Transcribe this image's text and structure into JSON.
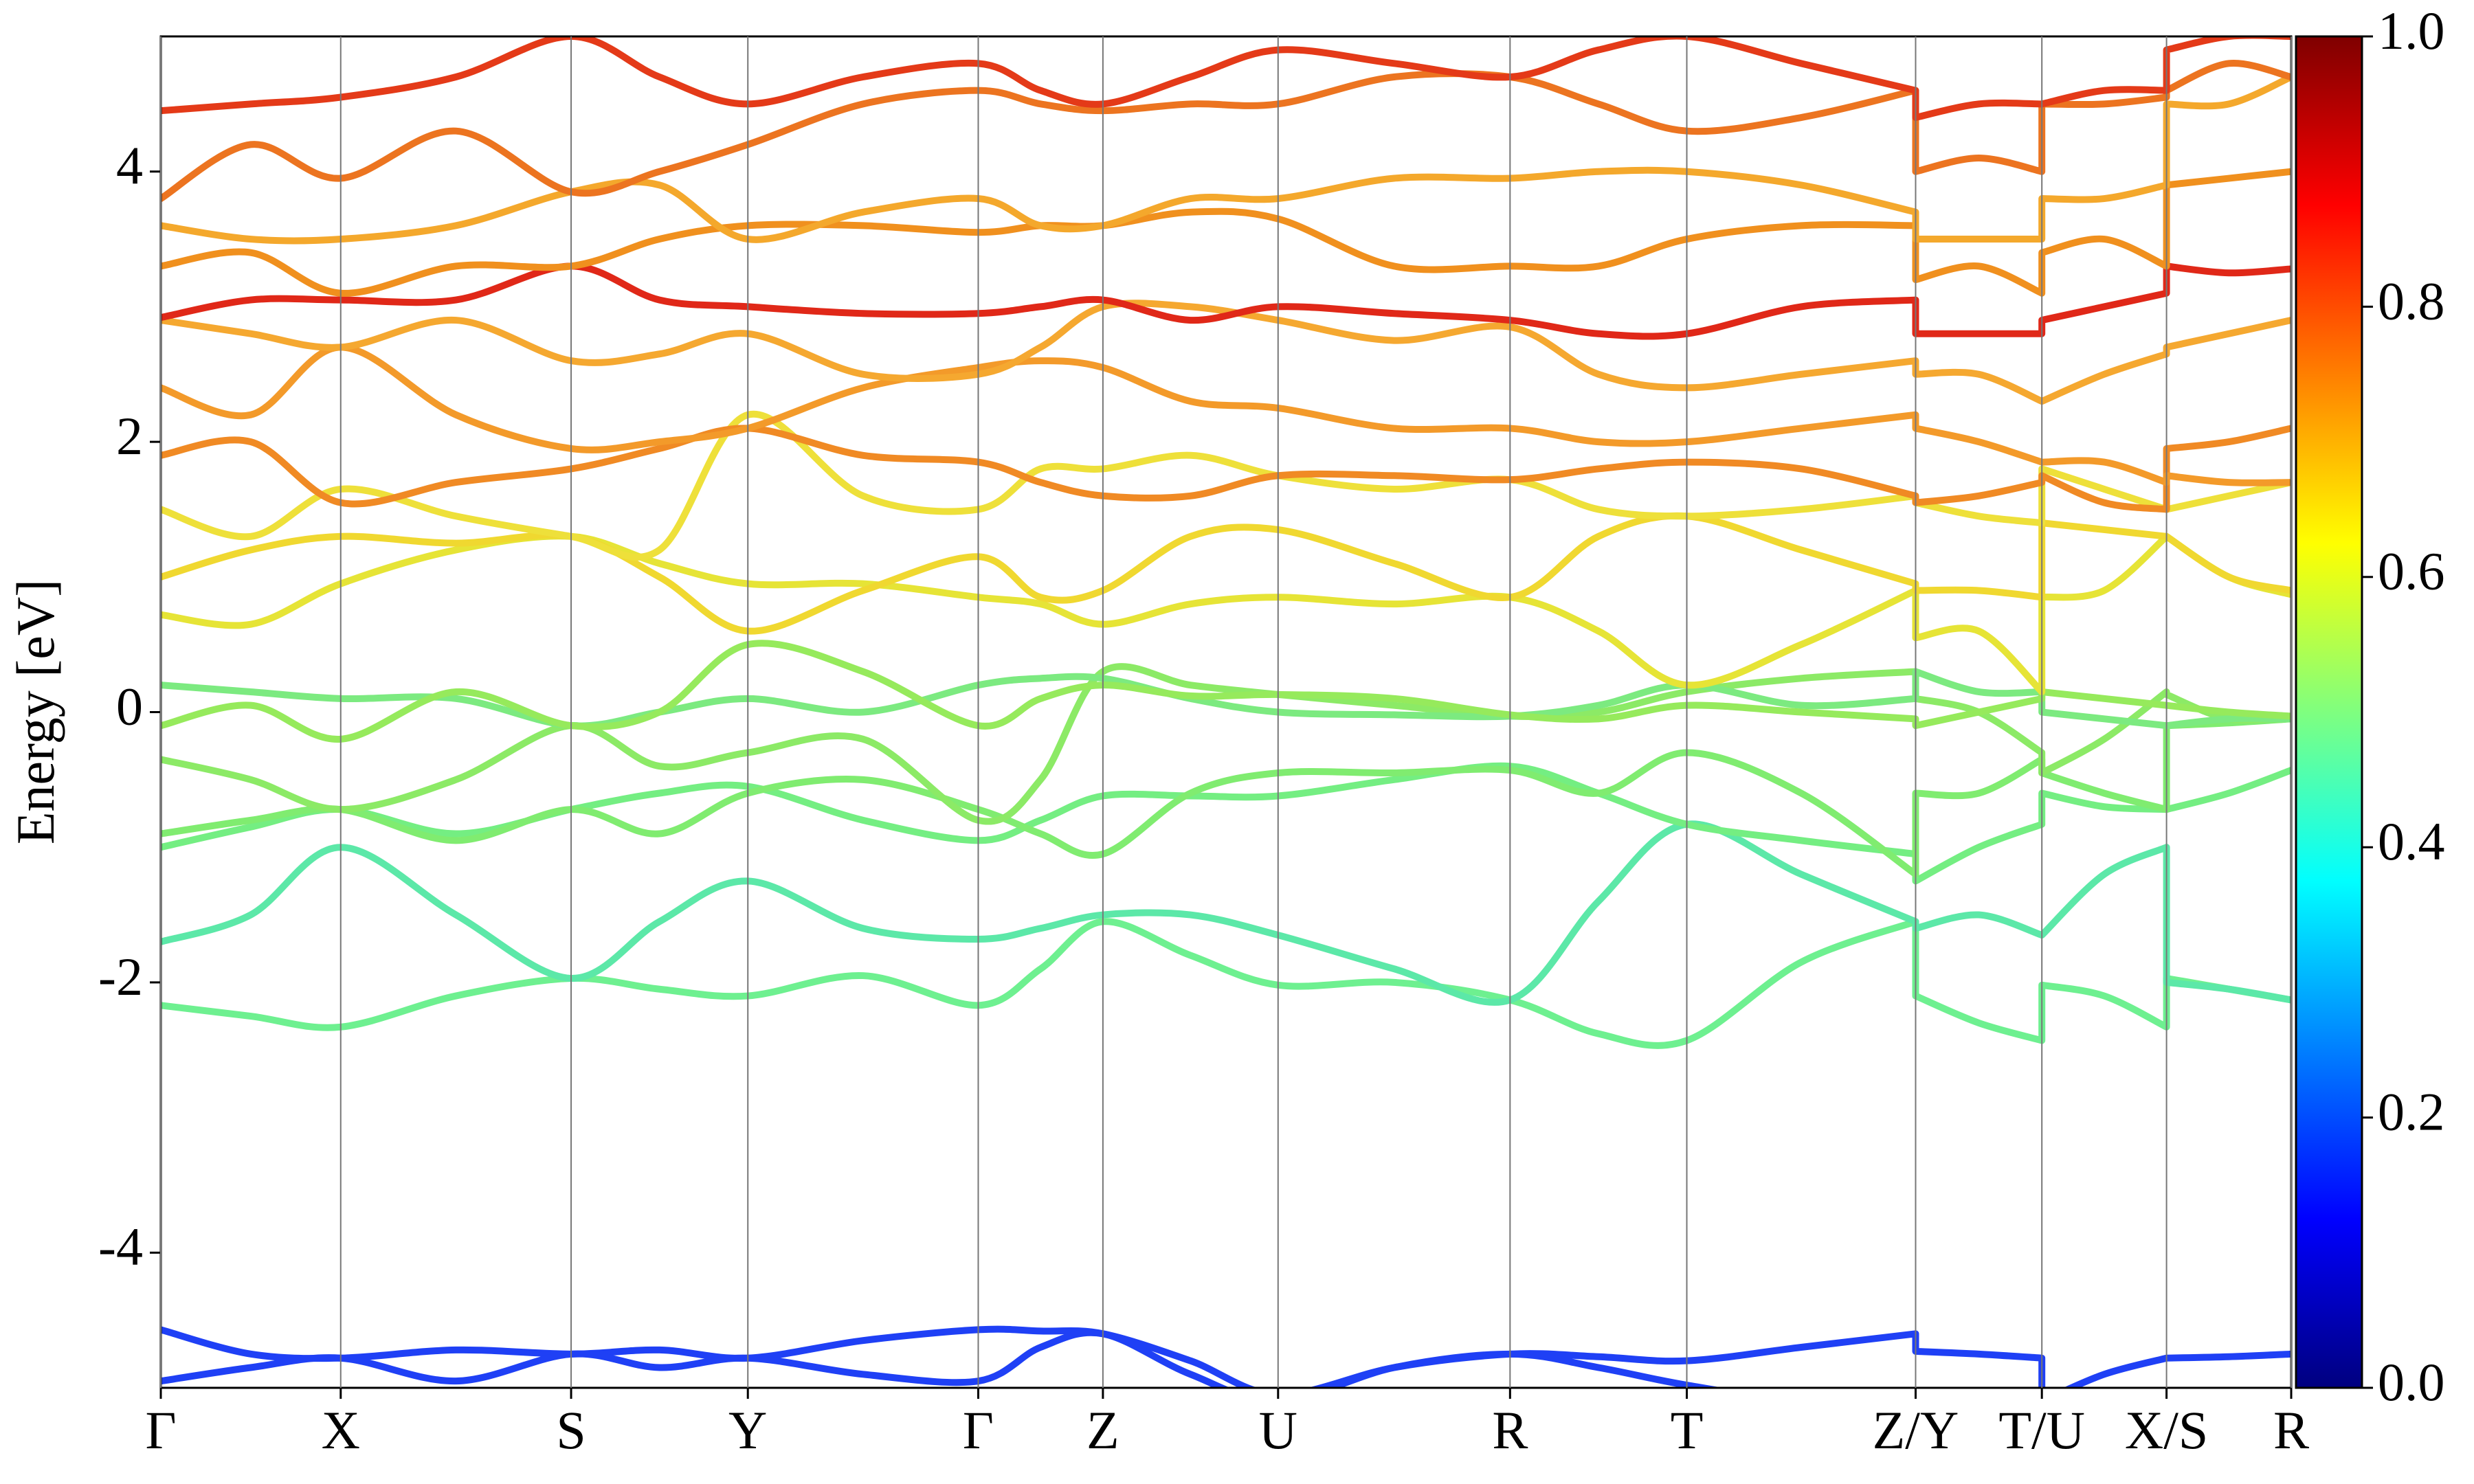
{
  "chart_data": {
    "type": "line",
    "ylabel": "Energy [eV]",
    "x": [
      0,
      0.57,
      1.14,
      1.87,
      2.6,
      3.16,
      3.72,
      4.45,
      5.18,
      5.575,
      5.97,
      6.525,
      7.08,
      7.815,
      8.55,
      9.11,
      9.67,
      10.395,
      11.12,
      11.12,
      11.52,
      11.92,
      11.92,
      12.315,
      12.71,
      12.71,
      13.105,
      13.5
    ],
    "xlim": [
      0,
      13.5
    ],
    "xticks": [
      {
        "value": 0,
        "label": "Γ"
      },
      {
        "value": 1.14,
        "label": "X"
      },
      {
        "value": 2.6,
        "label": "S"
      },
      {
        "value": 3.72,
        "label": "Y"
      },
      {
        "value": 5.18,
        "label": "Γ"
      },
      {
        "value": 5.97,
        "label": "Z"
      },
      {
        "value": 7.08,
        "label": "U"
      },
      {
        "value": 8.55,
        "label": "R"
      },
      {
        "value": 9.67,
        "label": "T"
      },
      {
        "value": 11.12,
        "label": "Z/Y"
      },
      {
        "value": 11.92,
        "label": "T/U"
      },
      {
        "value": 12.71,
        "label": "X/S"
      },
      {
        "value": 13.5,
        "label": "R"
      }
    ],
    "ylim": [
      -5,
      5
    ],
    "yticks": [
      -4,
      -2,
      0,
      2,
      4
    ],
    "series": [
      {
        "color": "#1f40f5",
        "values": [
          -4.57,
          -4.75,
          -4.78,
          -4.72,
          -4.75,
          -4.72,
          -4.78,
          -4.65,
          -4.57,
          -4.58,
          -4.6,
          -4.8,
          -5.05,
          -4.85,
          -4.75,
          -4.77,
          -4.8,
          -4.7,
          -4.6,
          -4.73,
          -4.75,
          -4.78,
          -5.1,
          -4.9,
          -4.78,
          -4.78,
          -4.77,
          -4.75
        ]
      },
      {
        "color": "#1f40f5",
        "values": [
          -4.95,
          -4.85,
          -4.78,
          -4.95,
          -4.75,
          -4.85,
          -4.78,
          -4.9,
          -4.95,
          -4.7,
          -4.6,
          -4.9,
          -5.1,
          -4.85,
          -4.75,
          -4.85,
          -4.98,
          -5.1,
          -5.1,
          -5.1,
          -5.1,
          -5.1,
          -5.1,
          -5.1,
          -5.1,
          -5.1,
          -5.1,
          -5.1
        ]
      },
      {
        "color": "#6ef090",
        "values": [
          -2.17,
          -2.25,
          -2.33,
          -2.1,
          -1.97,
          -2.05,
          -2.1,
          -1.95,
          -2.17,
          -1.9,
          -1.55,
          -1.8,
          -2.02,
          -2.0,
          -2.13,
          -2.38,
          -2.43,
          -1.85,
          -1.55,
          -2.1,
          -2.3,
          -2.43,
          -2.02,
          -2.1,
          -2.33,
          -1.97,
          -2.05,
          -2.13
        ]
      },
      {
        "color": "#5ce8a8",
        "values": [
          -1.7,
          -1.5,
          -1.0,
          -1.5,
          -1.97,
          -1.55,
          -1.25,
          -1.6,
          -1.68,
          -1.6,
          -1.5,
          -1.5,
          -1.65,
          -1.9,
          -2.13,
          -1.4,
          -0.83,
          -1.2,
          -1.55,
          -1.6,
          -1.5,
          -1.65,
          -1.65,
          -1.2,
          -1.0,
          -2.0,
          -2.05,
          -2.13
        ]
      },
      {
        "color": "#74ee82",
        "values": [
          -1.0,
          -0.85,
          -0.72,
          -0.9,
          -0.72,
          -0.6,
          -0.55,
          -0.8,
          -0.95,
          -0.8,
          -0.62,
          -0.62,
          -0.62,
          -0.5,
          -0.4,
          -0.6,
          -0.83,
          -0.95,
          -1.05,
          -1.25,
          -1.0,
          -0.83,
          -0.6,
          -0.7,
          -0.72,
          -0.72,
          -0.6,
          -0.43
        ]
      },
      {
        "color": "#80ec70",
        "values": [
          -0.9,
          -0.8,
          -0.72,
          -0.95,
          -0.72,
          -0.9,
          -0.6,
          -0.5,
          -0.72,
          -0.9,
          -1.05,
          -0.6,
          -0.45,
          -0.45,
          -0.43,
          -0.6,
          -0.3,
          -0.6,
          -1.2,
          -0.6,
          -0.6,
          -0.35,
          -0.45,
          -0.6,
          -0.72,
          -0.1,
          -0.08,
          -0.05
        ]
      },
      {
        "color": "#8cea66",
        "values": [
          -0.35,
          -0.5,
          -0.72,
          -0.5,
          -0.1,
          -0.4,
          -0.3,
          -0.2,
          -0.8,
          -0.5,
          0.3,
          0.2,
          0.13,
          0.05,
          -0.03,
          0.0,
          0.15,
          0.25,
          0.3,
          0.1,
          0.0,
          -0.3,
          -0.45,
          -0.2,
          0.15,
          0.13,
          -0.05,
          -0.03
        ]
      },
      {
        "color": "#7cea80",
        "values": [
          0.2,
          0.15,
          0.1,
          0.1,
          -0.1,
          0.0,
          0.1,
          0.0,
          0.2,
          0.25,
          0.25,
          0.1,
          0.0,
          -0.02,
          -0.03,
          0.05,
          0.2,
          0.05,
          0.1,
          0.3,
          0.15,
          0.15,
          0.0,
          -0.05,
          -0.1,
          -0.1,
          -0.05,
          -0.05
        ]
      },
      {
        "color": "#96ea5c",
        "values": [
          -0.1,
          0.05,
          -0.2,
          0.15,
          -0.1,
          0.0,
          0.5,
          0.3,
          -0.1,
          0.1,
          0.2,
          0.12,
          0.13,
          0.1,
          -0.02,
          -0.05,
          0.05,
          0.0,
          -0.05,
          -0.1,
          0.0,
          0.1,
          0.15,
          0.1,
          0.05,
          0.05,
          0.0,
          -0.03
        ]
      },
      {
        "color": "#e6e436",
        "values": [
          0.72,
          0.65,
          0.95,
          1.2,
          1.3,
          1.1,
          0.95,
          0.95,
          0.85,
          0.8,
          0.65,
          0.8,
          0.85,
          0.8,
          0.85,
          0.6,
          0.2,
          0.5,
          0.9,
          0.55,
          0.6,
          0.15,
          0.85,
          0.9,
          1.3,
          1.3,
          1.0,
          0.87
        ]
      },
      {
        "color": "#f0d830",
        "values": [
          1.0,
          1.2,
          1.3,
          1.25,
          1.3,
          1.0,
          0.6,
          0.9,
          1.15,
          0.85,
          0.9,
          1.3,
          1.35,
          1.1,
          0.85,
          1.3,
          1.45,
          1.2,
          0.95,
          0.9,
          0.9,
          0.85,
          1.4,
          1.35,
          1.3,
          1.3,
          1.0,
          0.9
        ]
      },
      {
        "color": "#eee03a",
        "values": [
          1.5,
          1.3,
          1.65,
          1.45,
          1.3,
          1.2,
          2.2,
          1.6,
          1.5,
          1.8,
          1.8,
          1.9,
          1.75,
          1.65,
          1.72,
          1.5,
          1.45,
          1.5,
          1.6,
          1.55,
          1.45,
          1.4,
          1.8,
          1.65,
          1.5,
          1.5,
          1.6,
          1.7
        ]
      },
      {
        "color": "#f08a24",
        "values": [
          1.9,
          2.0,
          1.55,
          1.7,
          1.8,
          1.95,
          2.1,
          1.9,
          1.85,
          1.7,
          1.6,
          1.6,
          1.75,
          1.75,
          1.72,
          1.8,
          1.85,
          1.8,
          1.6,
          1.55,
          1.6,
          1.7,
          1.75,
          1.55,
          1.5,
          1.95,
          2.0,
          2.1
        ]
      },
      {
        "color": "#f39a2a",
        "values": [
          2.4,
          2.2,
          2.7,
          2.2,
          1.95,
          2.0,
          2.1,
          2.4,
          2.55,
          2.6,
          2.55,
          2.3,
          2.25,
          2.1,
          2.1,
          2.0,
          2.0,
          2.1,
          2.2,
          2.1,
          2.0,
          1.85,
          1.85,
          1.85,
          1.7,
          1.75,
          1.7,
          1.7
        ]
      },
      {
        "color": "#f5a830",
        "values": [
          2.9,
          2.8,
          2.7,
          2.9,
          2.6,
          2.65,
          2.8,
          2.5,
          2.5,
          2.7,
          3.0,
          3.0,
          2.9,
          2.75,
          2.85,
          2.5,
          2.4,
          2.5,
          2.6,
          2.5,
          2.5,
          2.3,
          2.3,
          2.5,
          2.65,
          2.7,
          2.8,
          2.9
        ]
      },
      {
        "color": "#e02818",
        "values": [
          2.92,
          3.05,
          3.05,
          3.05,
          3.3,
          3.05,
          3.0,
          2.95,
          2.95,
          3.0,
          3.05,
          2.9,
          3.0,
          2.95,
          2.9,
          2.8,
          2.8,
          3.0,
          3.05,
          2.8,
          2.8,
          2.8,
          2.9,
          3.0,
          3.1,
          3.3,
          3.25,
          3.28
        ]
      },
      {
        "color": "#f0901e",
        "values": [
          3.3,
          3.4,
          3.1,
          3.3,
          3.3,
          3.5,
          3.6,
          3.6,
          3.55,
          3.6,
          3.6,
          3.7,
          3.65,
          3.3,
          3.3,
          3.3,
          3.5,
          3.6,
          3.6,
          3.2,
          3.3,
          3.1,
          3.4,
          3.5,
          3.3,
          3.9,
          3.95,
          4.0
        ]
      },
      {
        "color": "#f4a82c",
        "values": [
          3.6,
          3.5,
          3.5,
          3.6,
          3.85,
          3.9,
          3.5,
          3.7,
          3.8,
          3.6,
          3.6,
          3.8,
          3.8,
          3.95,
          3.95,
          4.0,
          4.0,
          3.9,
          3.7,
          3.5,
          3.5,
          3.5,
          3.8,
          3.8,
          3.9,
          4.5,
          4.5,
          4.7
        ]
      },
      {
        "color": "#ec7420",
        "values": [
          3.8,
          4.2,
          3.95,
          4.3,
          3.85,
          4.0,
          4.2,
          4.5,
          4.6,
          4.5,
          4.45,
          4.5,
          4.5,
          4.7,
          4.7,
          4.5,
          4.3,
          4.4,
          4.6,
          4.0,
          4.1,
          4.0,
          4.5,
          4.5,
          4.55,
          4.6,
          4.8,
          4.7
        ]
      },
      {
        "color": "#e43a18",
        "values": [
          4.45,
          4.5,
          4.55,
          4.7,
          5.0,
          4.7,
          4.5,
          4.7,
          4.8,
          4.6,
          4.5,
          4.7,
          4.9,
          4.8,
          4.7,
          4.9,
          5.0,
          4.8,
          4.6,
          4.4,
          4.5,
          4.5,
          4.5,
          4.6,
          4.6,
          4.9,
          5.0,
          5.0
        ]
      }
    ],
    "colorbar": {
      "colormap": [
        "#00007f",
        "#0000ff",
        "#007fff",
        "#00ffff",
        "#7fff7f",
        "#ffff00",
        "#ff7f00",
        "#ff0000",
        "#7f0000"
      ],
      "lim": [
        0,
        1
      ],
      "ticks": [
        {
          "value": 0,
          "label": "0.0"
        },
        0.2,
        0.4,
        0.6,
        0.8,
        {
          "value": 1,
          "label": "1.0"
        }
      ]
    }
  }
}
